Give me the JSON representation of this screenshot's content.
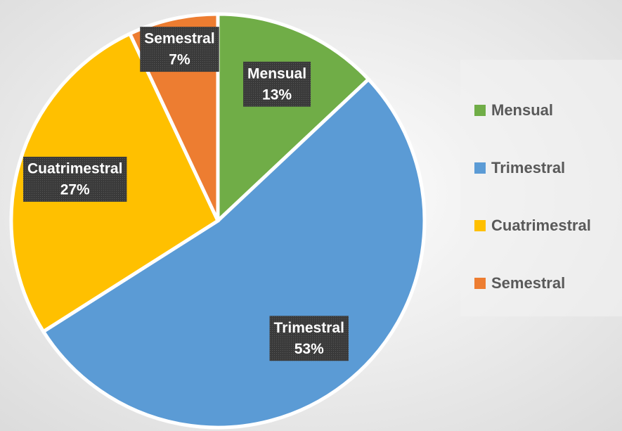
{
  "chart_data": {
    "type": "pie",
    "categories": [
      "Mensual",
      "Trimestral",
      "Cuatrimestral",
      "Semestral"
    ],
    "values": [
      13,
      53,
      27,
      7
    ],
    "value_labels": [
      "13%",
      "53%",
      "27%",
      "7%"
    ],
    "colors": [
      "#70ad47",
      "#5b9bd5",
      "#ffc000",
      "#ed7d31"
    ],
    "legend": "right"
  }
}
